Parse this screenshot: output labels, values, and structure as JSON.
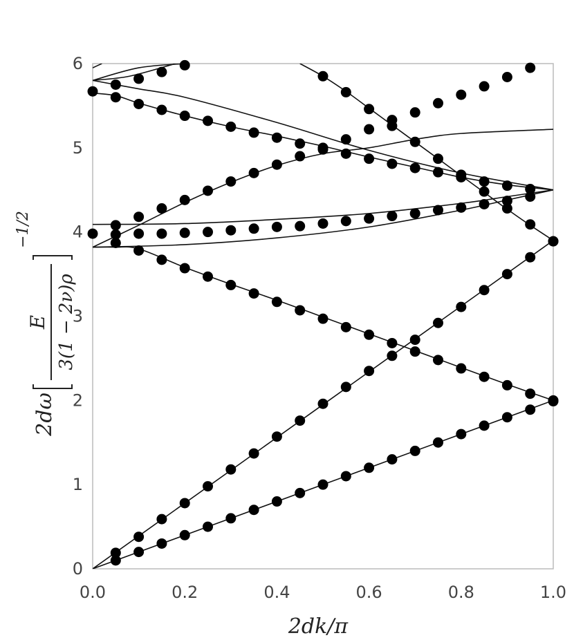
{
  "chart_data": {
    "type": "line",
    "xlabel": "2dk/π",
    "ylabel": {
      "prefix": "2dω",
      "numerator": "E",
      "denominator": "3(1 − 2ν)ρ",
      "exponent": "−1/2"
    },
    "xlim": [
      0,
      1
    ],
    "ylim": [
      0,
      6
    ],
    "x_ticks": [
      "0.0",
      "0.2",
      "0.4",
      "0.6",
      "0.8",
      "1.0"
    ],
    "y_ticks": [
      "0",
      "1",
      "2",
      "3",
      "4",
      "5",
      "6"
    ],
    "grid": false,
    "series": [
      {
        "kind": "line",
        "x": [
          0,
          1
        ],
        "values": [
          0,
          2
        ]
      },
      {
        "kind": "line",
        "x": [
          0,
          1
        ],
        "values": [
          0,
          3.9
        ]
      },
      {
        "kind": "line",
        "x": [
          0,
          0.05,
          0.1,
          0.2,
          0.3,
          0.4,
          0.5,
          0.6,
          0.7,
          0.8,
          0.9,
          1.0
        ],
        "values": [
          3.82,
          3.82,
          3.8,
          3.58,
          3.38,
          3.19,
          2.99,
          2.79,
          2.59,
          2.39,
          2.19,
          2.0
        ]
      },
      {
        "kind": "line",
        "x": [
          0,
          0.2,
          0.4,
          0.6,
          0.8,
          0.9,
          1.0
        ],
        "values": [
          3.82,
          3.85,
          3.93,
          4.06,
          4.26,
          4.38,
          4.5
        ]
      },
      {
        "kind": "line",
        "x": [
          0,
          0.2,
          0.4,
          0.6,
          0.8,
          0.9,
          1.0
        ],
        "values": [
          4.09,
          4.1,
          4.15,
          4.22,
          4.34,
          4.42,
          4.5
        ]
      },
      {
        "kind": "line",
        "x": [
          0,
          0.1,
          0.2,
          0.3,
          0.4,
          0.5,
          0.6,
          0.7,
          0.8,
          1.0
        ],
        "values": [
          3.82,
          4.08,
          4.35,
          4.59,
          4.79,
          4.93,
          5.0,
          5.1,
          5.17,
          5.22
        ]
      },
      {
        "kind": "line",
        "x": [
          0,
          0.05,
          0.1,
          0.2,
          0.3,
          0.4,
          0.5,
          0.6,
          0.7,
          0.8,
          0.9,
          1.0
        ],
        "values": [
          5.65,
          5.62,
          5.53,
          5.38,
          5.25,
          5.14,
          5.02,
          4.89,
          4.77,
          4.65,
          4.56,
          4.5
        ]
      },
      {
        "kind": "line",
        "x": [
          0,
          0.1,
          0.2,
          0.4,
          0.6,
          0.8,
          1.0
        ],
        "values": [
          5.8,
          5.7,
          5.6,
          5.3,
          4.97,
          4.7,
          4.5
        ]
      },
      {
        "kind": "line",
        "x": [
          0,
          0.1,
          0.2
        ],
        "values": [
          5.8,
          5.95,
          6.0
        ]
      },
      {
        "kind": "line",
        "x": [
          0,
          0.08,
          0.18
        ],
        "values": [
          5.8,
          5.85,
          6.0
        ]
      },
      {
        "kind": "line",
        "x": [
          0,
          0.02
        ],
        "values": [
          5.95,
          6.0
        ]
      },
      {
        "kind": "line",
        "x": [
          0.45,
          0.5,
          0.55,
          0.6,
          0.65,
          0.7,
          0.75,
          0.8,
          0.85,
          0.9,
          0.95,
          1.0
        ],
        "values": [
          6.0,
          5.85,
          5.67,
          5.47,
          5.27,
          5.07,
          4.87,
          4.67,
          4.47,
          4.27,
          4.08,
          3.9
        ]
      },
      {
        "kind": "markers",
        "x": [
          0.05,
          0.1,
          0.15,
          0.2,
          0.25,
          0.3,
          0.35,
          0.4,
          0.45,
          0.5,
          0.55,
          0.6,
          0.65,
          0.7,
          0.75,
          0.8,
          0.85,
          0.9,
          0.95,
          1.0
        ],
        "values": [
          0.1,
          0.2,
          0.3,
          0.4,
          0.5,
          0.6,
          0.7,
          0.8,
          0.9,
          1.0,
          1.1,
          1.2,
          1.3,
          1.4,
          1.5,
          1.6,
          1.7,
          1.8,
          1.89,
          2.0
        ]
      },
      {
        "kind": "markers",
        "x": [
          0.05,
          0.1,
          0.15,
          0.2,
          0.25,
          0.3,
          0.35,
          0.4,
          0.45,
          0.5,
          0.55,
          0.6,
          0.65,
          0.7,
          0.75,
          0.8,
          0.85,
          0.9,
          0.95,
          1.0
        ],
        "values": [
          0.19,
          0.38,
          0.59,
          0.78,
          0.98,
          1.18,
          1.37,
          1.57,
          1.76,
          1.96,
          2.16,
          2.35,
          2.53,
          2.72,
          2.92,
          3.11,
          3.31,
          3.5,
          3.7,
          3.89
        ]
      },
      {
        "kind": "markers",
        "x": [
          0.05,
          0.1,
          0.15,
          0.2,
          0.25,
          0.3,
          0.35,
          0.4,
          0.45,
          0.5,
          0.55,
          0.6,
          0.65,
          0.7,
          0.75,
          0.8,
          0.85,
          0.9,
          0.95,
          1.0
        ],
        "values": [
          3.87,
          3.78,
          3.67,
          3.57,
          3.47,
          3.37,
          3.27,
          3.17,
          3.07,
          2.97,
          2.87,
          2.78,
          2.68,
          2.58,
          2.48,
          2.38,
          2.28,
          2.18,
          2.08,
          1.99
        ]
      },
      {
        "kind": "markers",
        "x": [
          0,
          0.05,
          0.1,
          0.15,
          0.2,
          0.25,
          0.3,
          0.35,
          0.4,
          0.45,
          0.5,
          0.55,
          0.6,
          0.65,
          0.7,
          0.75,
          0.8,
          0.85,
          0.9,
          0.95
        ],
        "values": [
          3.98,
          3.97,
          3.98,
          3.98,
          3.99,
          4.0,
          4.02,
          4.04,
          4.06,
          4.07,
          4.1,
          4.13,
          4.16,
          4.19,
          4.22,
          4.26,
          4.29,
          4.33,
          4.37,
          4.42
        ]
      },
      {
        "kind": "markers",
        "x": [
          0.05,
          0.1,
          0.15,
          0.2,
          0.25,
          0.3,
          0.35,
          0.4,
          0.45,
          0.5,
          0.55,
          0.6,
          0.65,
          0.7
        ],
        "values": [
          4.08,
          4.18,
          4.28,
          4.38,
          4.49,
          4.6,
          4.7,
          4.8,
          4.9,
          5.0,
          5.1,
          5.22,
          5.33,
          5.42
        ]
      },
      {
        "kind": "markers",
        "x": [
          0.75,
          0.8,
          0.85,
          0.9,
          0.95
        ],
        "values": [
          5.53,
          5.63,
          5.73,
          5.84,
          5.95
        ]
      },
      {
        "kind": "markers",
        "x": [
          0,
          0.05,
          0.1,
          0.15,
          0.2,
          0.25,
          0.3,
          0.35,
          0.4,
          0.45,
          0.5,
          0.55,
          0.6,
          0.65,
          0.7,
          0.75,
          0.8,
          0.85,
          0.9,
          0.95
        ],
        "values": [
          5.67,
          5.6,
          5.52,
          5.45,
          5.38,
          5.32,
          5.25,
          5.18,
          5.12,
          5.05,
          4.98,
          4.93,
          4.87,
          4.81,
          4.76,
          4.71,
          4.65,
          4.6,
          4.55,
          4.51
        ]
      },
      {
        "kind": "markers",
        "x": [
          0.05,
          0.1,
          0.15,
          0.2
        ],
        "values": [
          5.75,
          5.82,
          5.9,
          5.98
        ]
      },
      {
        "kind": "markers",
        "x": [
          0.5,
          0.55,
          0.6,
          0.65,
          0.7,
          0.75,
          0.8,
          0.85,
          0.9,
          0.95,
          1.0
        ],
        "values": [
          5.85,
          5.66,
          5.46,
          5.26,
          5.07,
          4.87,
          4.68,
          4.48,
          4.28,
          4.09,
          3.89
        ]
      }
    ]
  }
}
